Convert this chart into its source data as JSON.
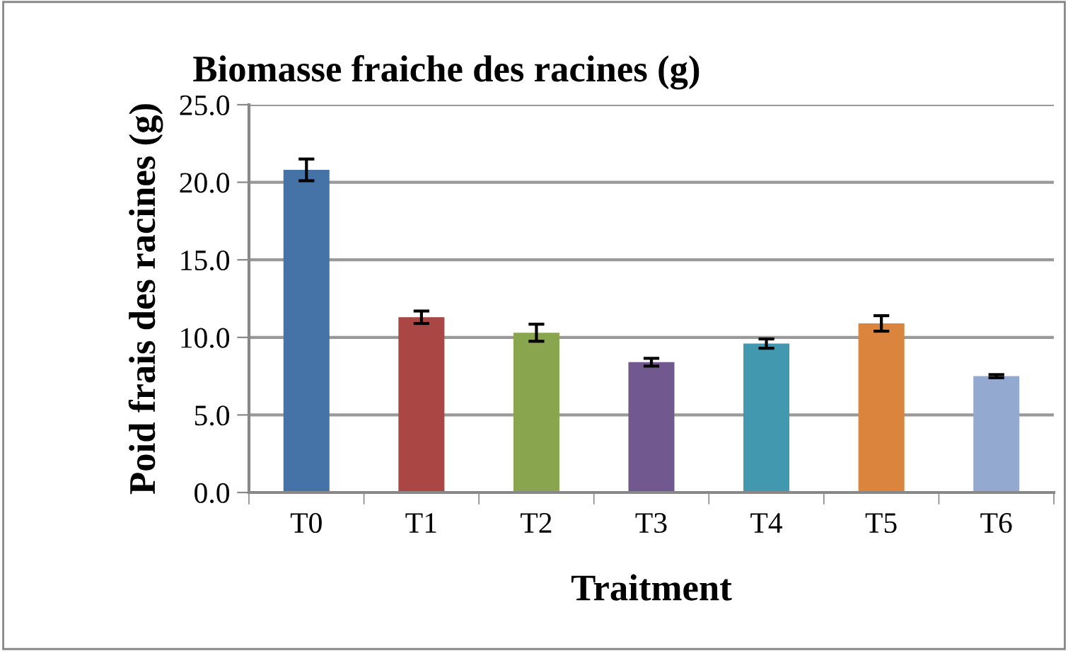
{
  "chart_data": {
    "type": "bar",
    "title": "Biomasse fraiche des racines (g)",
    "xlabel": "Traitment",
    "ylabel": "Poid frais des racines (g)",
    "categories": [
      "T0",
      "T1",
      "T2",
      "T3",
      "T4",
      "T5",
      "T6"
    ],
    "values": [
      20.8,
      11.3,
      10.3,
      8.4,
      9.6,
      10.9,
      7.5
    ],
    "errors": [
      0.7,
      0.4,
      0.55,
      0.25,
      0.3,
      0.5,
      0.1
    ],
    "colors": [
      "#4572a7",
      "#aa4643",
      "#89a54e",
      "#71588f",
      "#4198af",
      "#db843d",
      "#93a9cf"
    ],
    "ylim": [
      0,
      25
    ],
    "yticks": [
      {
        "value": 0,
        "label": "0.0"
      },
      {
        "value": 5,
        "label": "5.0"
      },
      {
        "value": 10,
        "label": "10.0"
      },
      {
        "value": 15,
        "label": "15.0"
      },
      {
        "value": 20,
        "label": "20.0"
      },
      {
        "value": 25,
        "label": "25.0"
      }
    ],
    "grid": "y"
  }
}
